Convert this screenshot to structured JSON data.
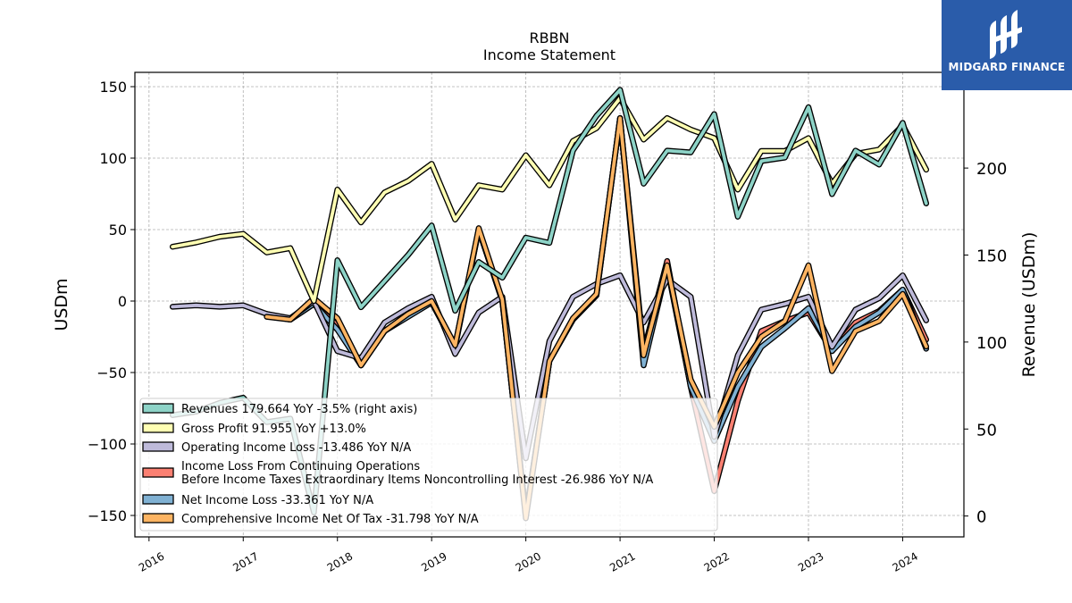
{
  "chart_data": {
    "type": "line",
    "title": "RBBN",
    "subtitle": "Income Statement",
    "ylabel": "USDm",
    "ylabel_right": "Revenue (USDm)",
    "ylim": [
      -165,
      160
    ],
    "ylim_right": [
      -12,
      255
    ],
    "yticks": [
      -150,
      -100,
      -50,
      0,
      50,
      100,
      150
    ],
    "yticks_right": [
      0,
      50,
      100,
      150,
      200
    ],
    "xlim": [
      2015.85,
      2024.65
    ],
    "xticks": [
      2016,
      2017,
      2018,
      2019,
      2020,
      2021,
      2022,
      2023,
      2024
    ],
    "grid": true,
    "legend_position": "lower-left",
    "colors": {
      "revenues": "#8dd3c7",
      "gross_profit": "#ffffb3",
      "operating_income": "#bebada",
      "income_loss_cont_ops": "#fb8072",
      "net_income": "#80b1d3",
      "comprehensive_income": "#fdb462"
    },
    "series": [
      {
        "name": "Revenues  179.664 YoY -3.5% (right axis)",
        "key": "revenues",
        "axis": "right",
        "x": [
          2016.25,
          2016.5,
          2016.75,
          2017.0,
          2017.25,
          2017.5,
          2017.75,
          2018.0,
          2018.25,
          2018.5,
          2018.75,
          2019.0,
          2019.25,
          2019.5,
          2019.75,
          2020.0,
          2020.25,
          2020.5,
          2020.75,
          2021.0,
          2021.25,
          2021.5,
          2021.75,
          2022.0,
          2022.25,
          2022.5,
          2022.75,
          2023.0,
          2023.25,
          2023.5,
          2023.75,
          2024.0,
          2024.25
        ],
        "values": [
          58,
          60,
          65,
          68,
          54,
          56,
          2,
          147,
          120,
          135,
          150,
          167,
          118,
          146,
          137,
          160,
          157,
          210,
          230,
          245,
          191,
          210,
          209,
          231,
          172,
          204,
          206,
          235,
          185,
          210,
          202,
          226,
          179.664
        ]
      },
      {
        "name": "Gross Profit  91.955 YoY +13.0%",
        "key": "gross_profit",
        "axis": "left",
        "x": [
          2016.25,
          2016.5,
          2016.75,
          2017.0,
          2017.25,
          2017.5,
          2017.75,
          2018.0,
          2018.25,
          2018.5,
          2018.75,
          2019.0,
          2019.25,
          2019.5,
          2019.75,
          2020.0,
          2020.25,
          2020.5,
          2020.75,
          2021.0,
          2021.25,
          2021.5,
          2021.75,
          2022.0,
          2022.25,
          2022.5,
          2022.75,
          2023.0,
          2023.25,
          2023.5,
          2023.75,
          2024.0,
          2024.25
        ],
        "values": [
          38,
          41,
          45,
          47,
          34,
          37,
          0,
          78,
          55,
          76,
          84,
          96,
          57,
          81,
          78,
          102,
          81,
          112,
          121,
          142,
          113,
          128,
          120,
          114,
          78,
          105,
          105,
          114,
          82,
          103,
          106,
          123,
          91.955
        ]
      },
      {
        "name": "Operating Income Loss  -13.486 YoY N/A",
        "key": "operating_income",
        "axis": "left",
        "x": [
          2016.25,
          2016.5,
          2016.75,
          2017.0,
          2017.25,
          2017.5,
          2017.75,
          2018.0,
          2018.25,
          2018.5,
          2018.75,
          2019.0,
          2019.25,
          2019.5,
          2019.75,
          2020.0,
          2020.25,
          2020.5,
          2020.75,
          2021.0,
          2021.25,
          2021.5,
          2021.75,
          2022.0,
          2022.25,
          2022.5,
          2022.75,
          2023.0,
          2023.25,
          2023.5,
          2023.75,
          2024.0,
          2024.25
        ],
        "values": [
          -4,
          -3,
          -4,
          -3,
          -9,
          -12,
          0,
          -35,
          -40,
          -15,
          -5,
          3,
          -37,
          -8,
          3,
          -110,
          -28,
          3,
          12,
          18,
          -15,
          15,
          3,
          -95,
          -38,
          -6,
          -2,
          3,
          -32,
          -6,
          2,
          18,
          -13.486
        ]
      },
      {
        "name": "Income Loss From Continuing Operations\nBefore Income Taxes Extraordinary Items Noncontrolling Interest  -26.986 YoY N/A",
        "key": "income_loss_cont_ops",
        "axis": "left",
        "x": [
          2017.25,
          2017.5,
          2017.75,
          2018.0,
          2018.25,
          2018.5,
          2018.75,
          2019.0,
          2019.25,
          2019.5,
          2019.75,
          2020.0,
          2020.25,
          2020.5,
          2020.75,
          2021.0,
          2021.25,
          2021.5,
          2021.75,
          2022.0,
          2022.25,
          2022.5,
          2022.75,
          2023.0,
          2023.25,
          2023.5,
          2023.75,
          2024.0,
          2024.25
        ],
        "values": [
          -9,
          -13,
          -2,
          -17,
          -45,
          -21,
          -10,
          -1,
          -32,
          50,
          0,
          -150,
          -42,
          -13,
          4,
          128,
          -35,
          28,
          -60,
          -133,
          -70,
          -21,
          -14,
          -8,
          -35,
          -15,
          -7,
          8,
          -26.986
        ]
      },
      {
        "name": "Net Income Loss  -33.361 YoY N/A",
        "key": "net_income",
        "axis": "left",
        "x": [
          2017.25,
          2017.5,
          2017.75,
          2018.0,
          2018.25,
          2018.5,
          2018.75,
          2019.0,
          2019.25,
          2019.5,
          2019.75,
          2020.0,
          2020.25,
          2020.5,
          2020.75,
          2021.0,
          2021.25,
          2021.5,
          2021.75,
          2022.0,
          2022.25,
          2022.5,
          2022.75,
          2023.0,
          2023.25,
          2023.5,
          2023.75,
          2024.0,
          2024.25
        ],
        "values": [
          -10,
          -13,
          -2,
          -20,
          -45,
          -21,
          -11,
          -1,
          -31,
          50,
          0,
          -150,
          -42,
          -13,
          4,
          128,
          -45,
          24,
          -60,
          -98,
          -60,
          -32,
          -19,
          -5,
          -35,
          -18,
          -8,
          8,
          -33.361
        ]
      },
      {
        "name": "Comprehensive Income Net Of Tax  -31.798 YoY N/A",
        "key": "comprehensive_income",
        "axis": "left",
        "x": [
          2017.25,
          2017.5,
          2017.75,
          2018.0,
          2018.25,
          2018.5,
          2018.75,
          2019.0,
          2019.25,
          2019.5,
          2019.75,
          2020.0,
          2020.25,
          2020.5,
          2020.75,
          2021.0,
          2021.25,
          2021.5,
          2021.75,
          2022.0,
          2022.25,
          2022.5,
          2022.75,
          2023.0,
          2023.25,
          2023.5,
          2023.75,
          2024.0,
          2024.25
        ],
        "values": [
          -11,
          -13,
          2,
          -12,
          -45,
          -21,
          -9,
          0,
          -31,
          51,
          1,
          -152,
          -42,
          -12,
          5,
          128,
          -38,
          25,
          -55,
          -88,
          -50,
          -25,
          -14,
          25,
          -49,
          -21,
          -14,
          5,
          -31.798
        ]
      }
    ]
  },
  "brand": {
    "name": "MIDGARD FINANCE"
  }
}
